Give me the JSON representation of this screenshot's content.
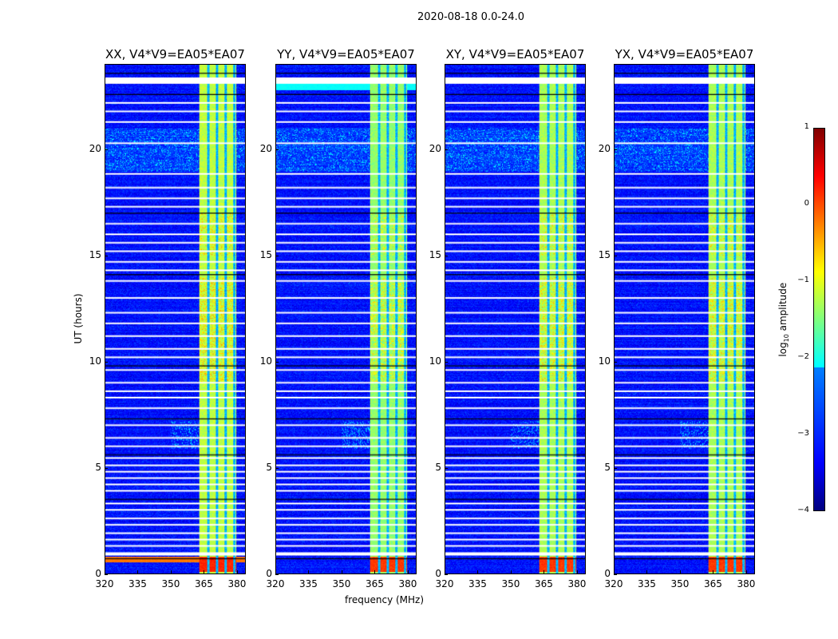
{
  "chart_data": {
    "type": "heatmap",
    "suptitle": "2020-08-18 0.0-24.0",
    "xlabel": "frequency (MHz)",
    "ylabel": "UT (hours)",
    "xlim": [
      320,
      384
    ],
    "ylim": [
      0,
      24
    ],
    "xticks": [
      "320",
      "335",
      "350",
      "365",
      "380"
    ],
    "xtick_values": [
      320,
      335,
      350,
      365,
      380
    ],
    "yticks": [
      "0",
      "5",
      "10",
      "15",
      "20"
    ],
    "ytick_values": [
      0,
      5,
      10,
      15,
      20
    ],
    "panels": [
      {
        "title": "XX, V4*V9=EA05*EA07",
        "band_level": -1.2,
        "low_time_level": 0.2
      },
      {
        "title": "YY, V4*V9=EA05*EA07",
        "band_level": -1.4,
        "low_time_level": 0.1
      },
      {
        "title": "XY, V4*V9=EA05*EA07",
        "band_level": -1.3,
        "low_time_level": 0.1
      },
      {
        "title": "YX, V4*V9=EA05*EA07",
        "band_level": -1.3,
        "low_time_level": 0.1
      }
    ],
    "background_level": -3.3,
    "rfi_band_mhz": [
      363,
      380
    ],
    "channel_edges_mhz": [
      367,
      371,
      375,
      379
    ],
    "flagged_hours": [
      0.9,
      1.3,
      1.6,
      1.9,
      2.3,
      2.6,
      3.0,
      3.3,
      3.9,
      4.2,
      4.5,
      4.8,
      5.1,
      5.45,
      6.0,
      6.4,
      7.0,
      7.8,
      8.3,
      8.6,
      9.0,
      9.6,
      10.2,
      10.6,
      11.2,
      11.8,
      12.3,
      13.0,
      13.8,
      14.3,
      14.7,
      15.2,
      15.6,
      16.0,
      16.5,
      17.3,
      17.7,
      18.2,
      18.85,
      20.3,
      21.3,
      21.8,
      22.2,
      23.2
    ],
    "dark_lines_hours": [
      0.7,
      3.5,
      5.6,
      7.3,
      9.8,
      14.1,
      17.0,
      22.6,
      23.6
    ],
    "colorbar": {
      "label": "log10 amplitude",
      "label_main": "log",
      "label_sub": "10",
      "label_rest": " amplitude",
      "range": [
        -4,
        1
      ],
      "ticks": [
        "1",
        "0",
        "−1",
        "−2",
        "−3",
        "−4"
      ],
      "tick_values": [
        1,
        0,
        -1,
        -2,
        -3,
        -4
      ],
      "colormap": "jet"
    }
  }
}
